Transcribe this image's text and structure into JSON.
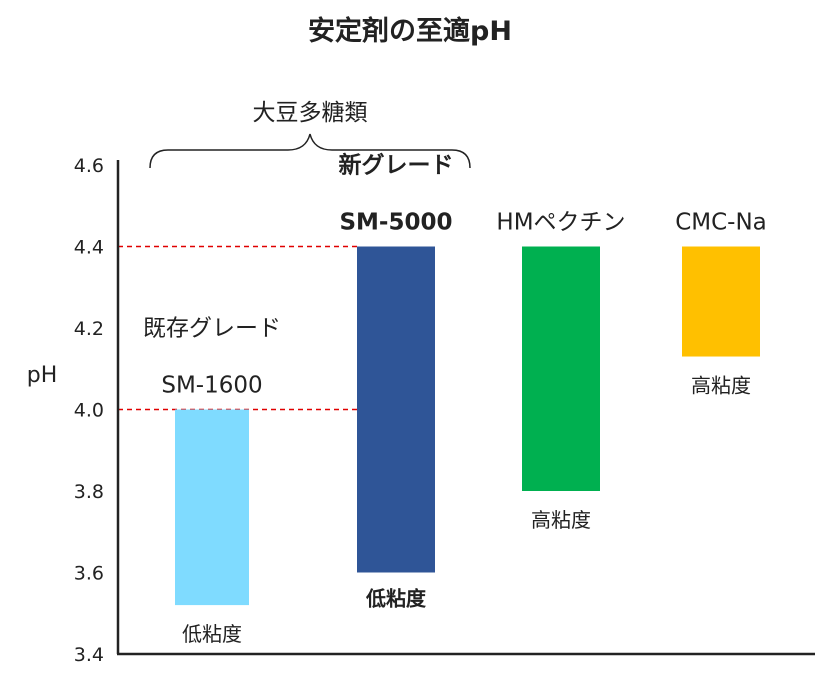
{
  "chart_data": {
    "type": "bar",
    "title": "安定剤の至適pH",
    "ylabel": "pH",
    "ylim": [
      3.4,
      4.6
    ],
    "yticks": [
      "3.4",
      "3.6",
      "3.8",
      "4.0",
      "4.2",
      "4.4",
      "4.6"
    ],
    "grid": false,
    "legend": "none",
    "group_label": "大豆多糖類",
    "bars": [
      {
        "label_top": "既存グレード",
        "label_name": "SM-1600",
        "label_bottom": "低粘度",
        "low": 3.52,
        "high": 4.0,
        "color": "#7fdbff",
        "bold": false
      },
      {
        "label_top": "新グレード",
        "label_name": "SM-5000",
        "label_bottom": "低粘度",
        "low": 3.6,
        "high": 4.4,
        "color": "#2f5597",
        "bold": true
      },
      {
        "label_top": "",
        "label_name": "HMペクチン",
        "label_bottom": "高粘度",
        "low": 3.8,
        "high": 4.4,
        "color": "#00b050",
        "bold": false
      },
      {
        "label_top": "",
        "label_name": "CMC-Na",
        "label_bottom": "高粘度",
        "low": 4.13,
        "high": 4.4,
        "color": "#ffc000",
        "bold": false
      }
    ],
    "reference_lines": [
      4.0,
      4.4
    ],
    "reference_color": "#e00000"
  }
}
